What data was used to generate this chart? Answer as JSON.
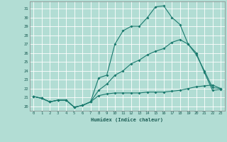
{
  "xlabel": "Humidex (Indice chaleur)",
  "background_color": "#b2ddd4",
  "grid_color": "#ffffff",
  "line_color": "#1a7a6e",
  "xlim": [
    -0.5,
    23.5
  ],
  "ylim": [
    19.5,
    31.8
  ],
  "xticks": [
    0,
    1,
    2,
    3,
    4,
    5,
    6,
    7,
    8,
    9,
    10,
    11,
    12,
    13,
    14,
    15,
    16,
    17,
    18,
    19,
    20,
    21,
    22,
    23
  ],
  "yticks": [
    20,
    21,
    22,
    23,
    24,
    25,
    26,
    27,
    28,
    29,
    30,
    31
  ],
  "series": [
    [
      21.1,
      20.9,
      20.5,
      20.7,
      20.7,
      19.9,
      20.1,
      20.5,
      23.2,
      23.5,
      27.0,
      28.5,
      29.0,
      29.0,
      30.0,
      31.2,
      31.3,
      30.0,
      29.2,
      27.0,
      25.8,
      24.0,
      22.1,
      22.0
    ],
    [
      21.1,
      20.9,
      20.5,
      20.7,
      20.7,
      19.9,
      20.1,
      20.5,
      21.8,
      22.5,
      23.5,
      24.0,
      24.8,
      25.2,
      25.8,
      26.2,
      26.5,
      27.2,
      27.5,
      27.0,
      26.0,
      23.8,
      21.8,
      21.9
    ],
    [
      21.1,
      20.9,
      20.5,
      20.7,
      20.7,
      19.9,
      20.1,
      20.5,
      21.2,
      21.4,
      21.5,
      21.5,
      21.5,
      21.5,
      21.6,
      21.6,
      21.6,
      21.7,
      21.8,
      22.0,
      22.2,
      22.3,
      22.4,
      22.0
    ]
  ]
}
